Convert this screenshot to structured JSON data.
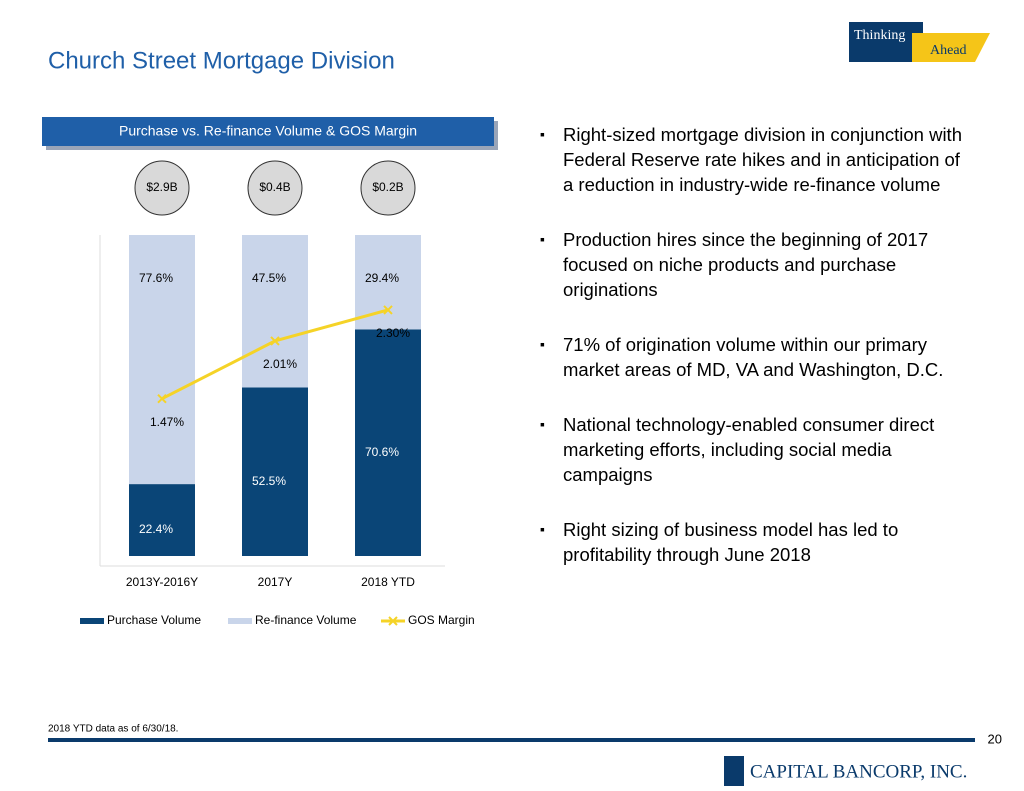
{
  "title": "Church Street Mortgage Division",
  "logo_top": [
    "Thinking",
    "Ahead"
  ],
  "bullets": [
    "Right-sized mortgage division in conjunction with Federal Reserve rate hikes and in anticipation of a reduction in industry-wide re-finance volume",
    "Production hires since the beginning of 2017 focused on niche products and purchase originations",
    "71% of origination volume within our primary market areas of MD, VA and Washington, D.C.",
    "National technology-enabled consumer direct marketing efforts, including social media campaigns",
    "Right sizing of business model has led to profitability through June 2018"
  ],
  "footnote": "2018 YTD data as of 6/30/18.",
  "page_number": "20",
  "company": "CAPITAL BANCORP, INC.",
  "chart_data": {
    "type": "stacked-bar-line",
    "title": "Purchase vs. Re-finance Volume & GOS Margin",
    "categories": [
      "2013Y-2016Y",
      "2017Y",
      "2018 YTD"
    ],
    "totals": {
      "values": [
        2.9,
        0.4,
        0.2
      ],
      "value_labels": [
        "$2.9B",
        "$0.4B",
        "$0.2B"
      ]
    },
    "ylim": [
      0,
      100
    ],
    "y2lim": [
      0,
      3
    ],
    "series": [
      {
        "name": "Purchase Volume",
        "color": "#0a4577",
        "values": [
          22.4,
          52.5,
          70.6
        ],
        "value_labels": [
          "22.4%",
          "52.5%",
          "70.6%"
        ]
      },
      {
        "name": "Re-finance Volume",
        "color": "#c9d5ea",
        "values": [
          77.6,
          47.5,
          29.4
        ],
        "value_labels": [
          "77.6%",
          "47.5%",
          "29.4%"
        ]
      },
      {
        "name": "GOS Margin",
        "color": "#f5d327",
        "axis": "y2",
        "values": [
          1.47,
          2.01,
          2.3
        ],
        "value_labels": [
          "1.47%",
          "2.01%",
          "2.30%"
        ]
      }
    ]
  }
}
